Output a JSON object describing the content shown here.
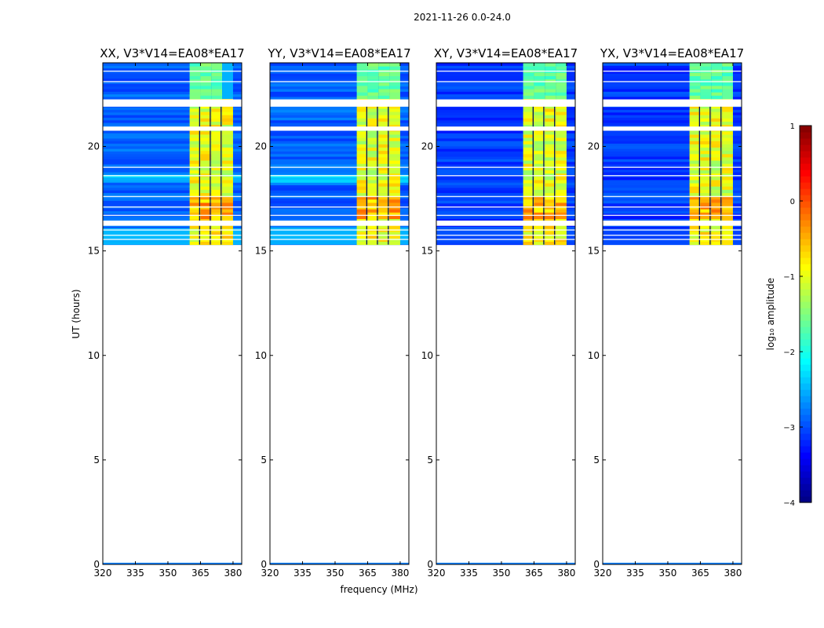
{
  "figure": {
    "suptitle": "2021-11-26 0.0-24.0",
    "ylabel": "UT (hours)",
    "xlabel": "frequency (MHz)",
    "colorbar_label": "log₁₀ amplitude",
    "colors": {
      "nodata": "#ffffff",
      "axis": "#000000"
    }
  },
  "chart_data": {
    "type": "heatmap",
    "panels": [
      {
        "title": "XX, V3*V14=EA08*EA17",
        "pol": "XX"
      },
      {
        "title": "YY, V3*V14=EA08*EA17",
        "pol": "YY"
      },
      {
        "title": "XY, V3*V14=EA08*EA17",
        "pol": "XY"
      },
      {
        "title": "YX, V3*V14=EA08*EA17",
        "pol": "YX"
      }
    ],
    "xlim": [
      320,
      384
    ],
    "ylim": [
      0,
      24
    ],
    "xticks": [
      320,
      335,
      350,
      365,
      380
    ],
    "yticks": [
      0,
      5,
      10,
      15,
      20
    ],
    "colorbar": {
      "min": -4,
      "max": 1,
      "ticks": [
        1,
        0,
        -1,
        -2,
        -3,
        -4
      ],
      "tick_labels": [
        "1",
        "0",
        "−1",
        "−2",
        "−3",
        "−4"
      ],
      "colormap": "jet"
    },
    "data_coverage_hours": [
      [
        15.3,
        24.0
      ],
      [
        0.0,
        0.08
      ]
    ],
    "gap_hours": [
      [
        16.2,
        16.45
      ],
      [
        20.75,
        20.95
      ],
      [
        21.9,
        22.25
      ]
    ],
    "rfi_band_mhz": [
      360,
      380
    ],
    "channel_gaps_mhz": [
      364.6,
      369.5,
      374.5
    ]
  }
}
